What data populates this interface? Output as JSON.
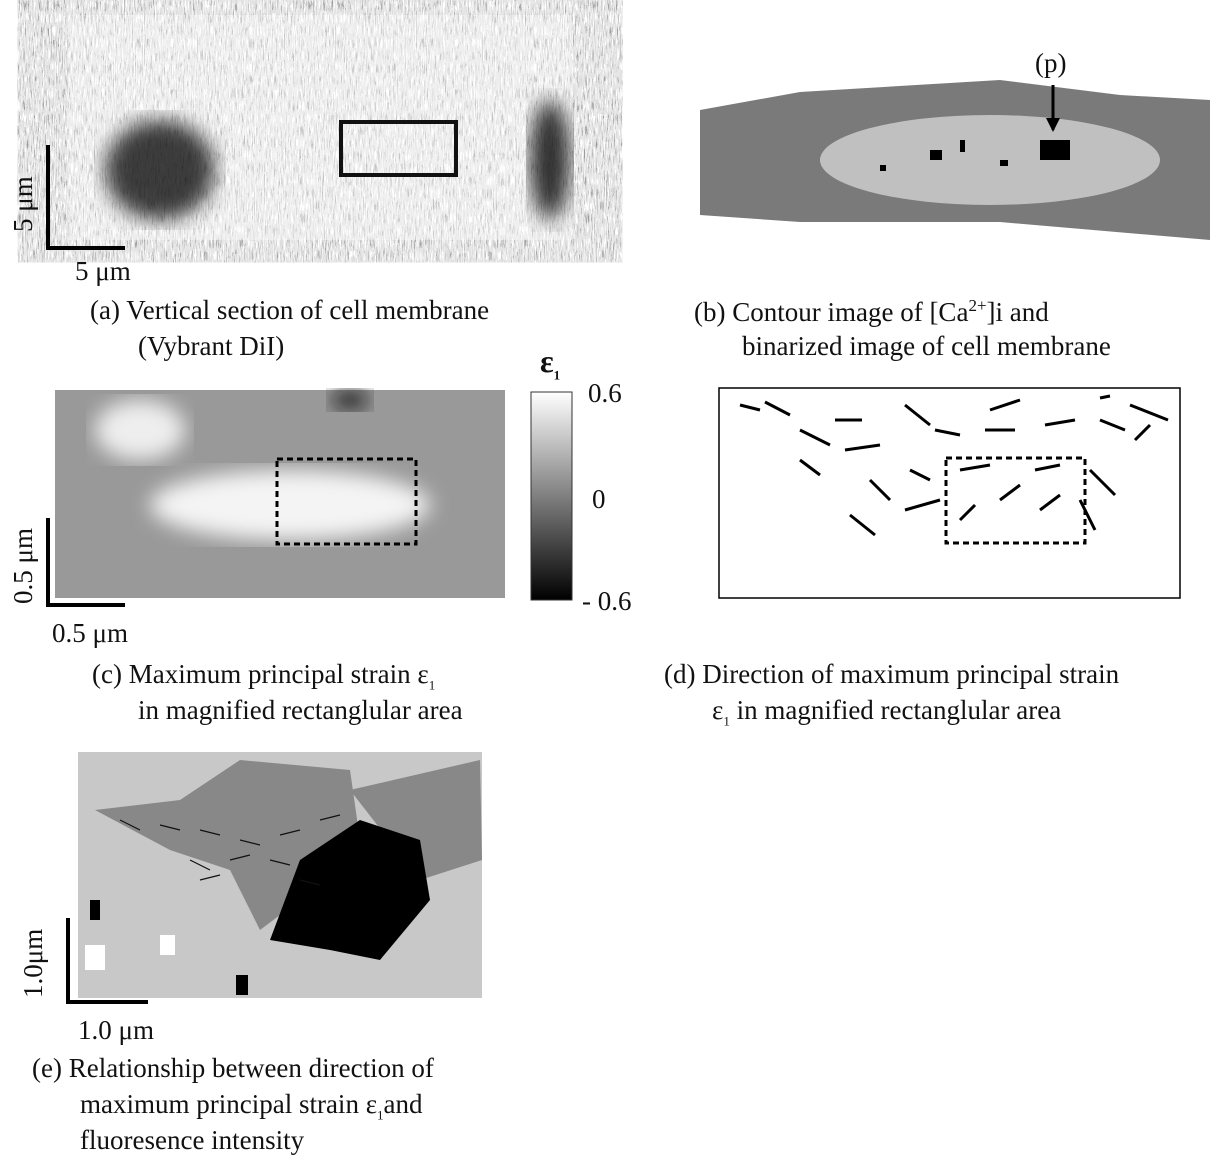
{
  "panel_a": {
    "caption": [
      "(a) Vertical section of cell membrane",
      "(Vybrant DiI)"
    ],
    "scale_x": "5 μm",
    "scale_y": "5 μm"
  },
  "panel_b": {
    "caption_line1": {
      "text": "(b) Contour image of [Ca",
      "sup": "2+",
      "after": "]i  and"
    },
    "caption_line2": "binarized image of cell membrane",
    "annotation": "(p)"
  },
  "panel_c": {
    "caption_line1": {
      "text": "(c) Maximum principal strain ε",
      "sub": "1"
    },
    "caption_line2": "in magnified rectanglular area",
    "colorbar": {
      "symbol": "ε",
      "sub": "1",
      "ticks": [
        "0.6",
        "0",
        "- 0.6"
      ]
    },
    "scale_x": "0.5 μm",
    "scale_y": "0.5 μm"
  },
  "panel_d": {
    "caption_line1": "(d) Direction of maximum principal strain",
    "caption_line2": {
      "text": "ε",
      "sub": "1",
      "after": " in magnified rectanglular area"
    }
  },
  "panel_e": {
    "caption_line1": "(e) Relationship between direction of",
    "caption_line2": {
      "text": "maximum principal strain ε",
      "sub": "1",
      "after": "and"
    },
    "caption_line3": "fluoresence intensity",
    "scale_x": "1.0 μm",
    "scale_y": "1.0μm"
  }
}
